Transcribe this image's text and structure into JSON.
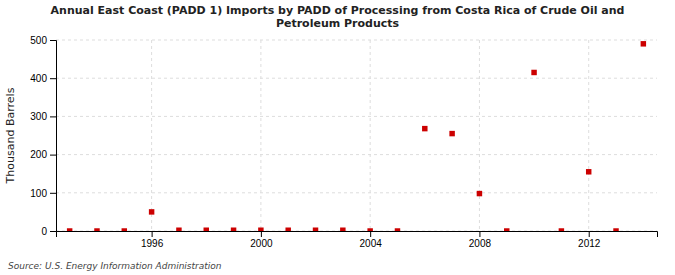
{
  "chart_data": {
    "type": "scatter",
    "title": "Annual East Coast (PADD 1) Imports by PADD of Processing from Costa Rica of Crude Oil and\nPetroleum Products",
    "ylabel": "Thousand Barrels",
    "annotations": [
      "Source: U.S. Energy Information Administration"
    ],
    "x": [
      1993,
      1994,
      1995,
      1996,
      1997,
      1998,
      1999,
      2000,
      2001,
      2002,
      2003,
      2004,
      2005,
      2006,
      2007,
      2008,
      2009,
      2010,
      2011,
      2012,
      2013,
      2014
    ],
    "values": [
      0,
      0,
      0,
      50,
      2,
      2,
      2,
      2,
      2,
      2,
      2,
      0,
      0,
      268,
      255,
      98,
      0,
      415,
      0,
      155,
      0,
      490
    ],
    "color": "#cc0000",
    "marker": "square",
    "xlim": [
      1992.5,
      2014.5
    ],
    "xticks": [
      1996,
      2000,
      2004,
      2008,
      2012
    ],
    "ylim": [
      0,
      500
    ],
    "yticks": [
      0,
      100,
      200,
      300,
      400,
      500
    ],
    "grid": true
  }
}
